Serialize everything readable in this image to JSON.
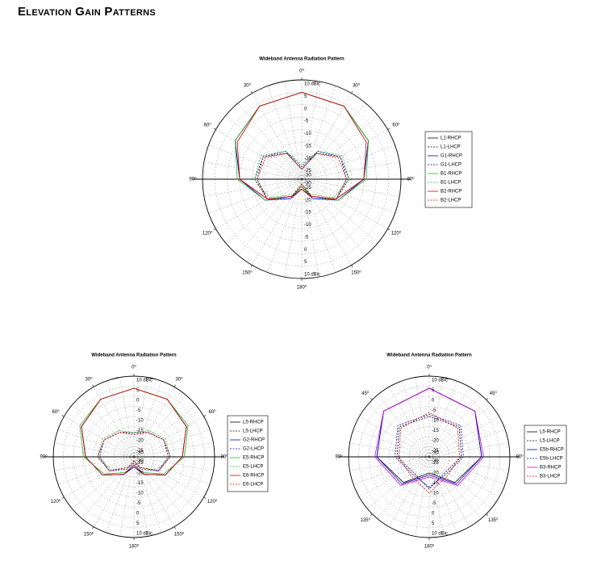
{
  "page_title": "Elevation Gain Patterns",
  "chart_data": [
    {
      "type": "polar",
      "title": "Wideband Antenna Radiation Pattern",
      "angles": [
        -180,
        -150,
        -120,
        -90,
        -60,
        -30,
        0,
        30,
        60,
        90,
        120,
        150,
        180
      ],
      "rlim": [
        -30,
        10
      ],
      "rticks": [
        -30,
        -25,
        -20,
        -15,
        -10,
        -5,
        0,
        5,
        {
          "value": 10,
          "label": "10 dBic"
        }
      ],
      "angle_ticks": [
        {
          "value": 0,
          "label": "0⁰"
        },
        {
          "value": 30,
          "label": "30⁰"
        },
        {
          "value": 60,
          "label": "60⁰"
        },
        {
          "value": 90,
          "label": "90⁰"
        },
        {
          "value": 120,
          "label": "120⁰"
        },
        {
          "value": 150,
          "label": "150⁰"
        },
        {
          "value": 180,
          "label": "180⁰"
        },
        {
          "value": -150,
          "label": "150⁰"
        },
        {
          "value": -120,
          "label": "120⁰"
        },
        {
          "value": -90,
          "label": "90⁰"
        },
        {
          "value": -60,
          "label": "60⁰"
        },
        {
          "value": -30,
          "label": "30⁰"
        }
      ],
      "series": [
        {
          "name": "L1-RHCP",
          "color": "#000000",
          "dash": false,
          "values": [
            -27,
            -22,
            -14,
            -5,
            1,
            4,
            5,
            4,
            1,
            -5,
            -14,
            -22,
            -27
          ]
        },
        {
          "name": "L1-LHCP",
          "color": "#000000",
          "dash": true,
          "values": [
            -28,
            -22,
            -14,
            -11,
            -12,
            -18,
            -26,
            -18,
            -12,
            -11,
            -14,
            -22,
            -28
          ]
        },
        {
          "name": "G1-RHCP",
          "color": "#0000cc",
          "dash": false,
          "values": [
            -26,
            -21,
            -13,
            -5,
            1,
            4,
            5,
            4,
            1,
            -5,
            -13,
            -21,
            -26
          ]
        },
        {
          "name": "G1-LHCP",
          "color": "#0000cc",
          "dash": true,
          "values": [
            -27,
            -21,
            -14,
            -12,
            -12,
            -17,
            -25,
            -17,
            -12,
            -12,
            -14,
            -21,
            -27
          ]
        },
        {
          "name": "B1-RHCP",
          "color": "#22bb22",
          "dash": false,
          "values": [
            -27,
            -22,
            -13,
            -4,
            1,
            4,
            5,
            4,
            1,
            -4,
            -13,
            -22,
            -27
          ]
        },
        {
          "name": "B1-LHCP",
          "color": "#22bb22",
          "dash": true,
          "values": [
            -28,
            -23,
            -15,
            -11,
            -11,
            -17,
            -24,
            -17,
            -11,
            -11,
            -15,
            -23,
            -28
          ]
        },
        {
          "name": "B2-RHCP",
          "color": "#dd0000",
          "dash": false,
          "values": [
            -26,
            -22,
            -14,
            -5,
            0,
            4,
            5,
            4,
            0,
            -5,
            -14,
            -22,
            -26
          ]
        },
        {
          "name": "B2-LHCP",
          "color": "#dd0000",
          "dash": true,
          "values": [
            -28,
            -22,
            -14,
            -12,
            -13,
            -18,
            -26,
            -18,
            -13,
            -12,
            -14,
            -22,
            -28
          ]
        }
      ]
    },
    {
      "type": "polar",
      "title": "Wideband Antenna Radiation Pattern",
      "angles": [
        -180,
        -150,
        -120,
        -90,
        -60,
        -30,
        0,
        30,
        60,
        90,
        120,
        150,
        180
      ],
      "rlim": [
        -30,
        10
      ],
      "rticks": [
        -30,
        -25,
        -20,
        -15,
        -10,
        -5,
        0,
        5,
        {
          "value": 10,
          "label": "10 dBic"
        }
      ],
      "angle_ticks": [
        {
          "value": 0,
          "label": "0⁰"
        },
        {
          "value": 30,
          "label": "30⁰"
        },
        {
          "value": 60,
          "label": "60⁰"
        },
        {
          "value": 90,
          "label": "90⁰"
        },
        {
          "value": 120,
          "label": "120⁰"
        },
        {
          "value": 150,
          "label": "150⁰"
        },
        {
          "value": 180,
          "label": "180⁰"
        },
        {
          "value": -150,
          "label": "150⁰"
        },
        {
          "value": -120,
          "label": "120⁰"
        },
        {
          "value": -90,
          "label": "90⁰"
        },
        {
          "value": -60,
          "label": "60⁰"
        },
        {
          "value": -30,
          "label": "30⁰"
        }
      ],
      "series": [
        {
          "name": "L5-RHCP",
          "color": "#000000",
          "dash": false,
          "values": [
            -26,
            -20,
            -12,
            -6,
            0,
            3,
            4,
            3,
            0,
            -6,
            -12,
            -20,
            -26
          ]
        },
        {
          "name": "L5-LHCP",
          "color": "#000000",
          "dash": true,
          "values": [
            -28,
            -24,
            -16,
            -12,
            -13,
            -16,
            -18,
            -16,
            -13,
            -12,
            -16,
            -24,
            -28
          ]
        },
        {
          "name": "G2-RHCP",
          "color": "#0000cc",
          "dash": false,
          "values": [
            -25,
            -20,
            -12,
            -6,
            0,
            3,
            4,
            3,
            0,
            -6,
            -12,
            -20,
            -25
          ]
        },
        {
          "name": "G2-LHCP",
          "color": "#0000cc",
          "dash": true,
          "values": [
            -27,
            -23,
            -16,
            -13,
            -13,
            -16,
            -19,
            -16,
            -13,
            -13,
            -16,
            -23,
            -27
          ]
        },
        {
          "name": "E5-RHCP",
          "color": "#22bb22",
          "dash": false,
          "values": [
            -26,
            -21,
            -13,
            -5,
            1,
            3,
            4,
            3,
            1,
            -5,
            -13,
            -21,
            -26
          ]
        },
        {
          "name": "E5-LHCP",
          "color": "#22bb22",
          "dash": true,
          "values": [
            -28,
            -24,
            -17,
            -12,
            -12,
            -15,
            -18,
            -15,
            -12,
            -12,
            -17,
            -24,
            -28
          ]
        },
        {
          "name": "E6-RHCP",
          "color": "#dd0000",
          "dash": false,
          "values": [
            -26,
            -20,
            -12,
            -6,
            0,
            3,
            4,
            3,
            0,
            -6,
            -12,
            -20,
            -26
          ]
        },
        {
          "name": "E6-LHCP",
          "color": "#dd0000",
          "dash": true,
          "values": [
            -28,
            -24,
            -16,
            -12,
            -13,
            -16,
            -19,
            -16,
            -13,
            -12,
            -16,
            -24,
            -28
          ]
        }
      ]
    },
    {
      "type": "polar",
      "title": "Wideband Antenna Radiation Pattern",
      "angles": [
        -180,
        -135,
        -90,
        -45,
        0,
        45,
        90,
        135,
        180
      ],
      "rlim": [
        -30,
        10
      ],
      "rticks": [
        -30,
        -25,
        -20,
        -15,
        -10,
        -5,
        0,
        5,
        {
          "value": 10,
          "label": "10 dBic"
        }
      ],
      "angle_ticks": [
        {
          "value": 0,
          "label": "0⁰"
        },
        {
          "value": 45,
          "label": "45⁰"
        },
        {
          "value": 90,
          "label": "90⁰"
        },
        {
          "value": 135,
          "label": "135⁰"
        },
        {
          "value": 180,
          "label": "180⁰"
        },
        {
          "value": -135,
          "label": "135⁰"
        },
        {
          "value": -90,
          "label": "90⁰"
        },
        {
          "value": -45,
          "label": "45⁰"
        }
      ],
      "series": [
        {
          "name": "L5-RHCP",
          "color": "#000000",
          "dash": false,
          "values": [
            -22,
            -12,
            -4,
            2,
            4,
            2,
            -4,
            -12,
            -22
          ]
        },
        {
          "name": "L5-LHCP",
          "color": "#000000",
          "dash": true,
          "values": [
            -14,
            -19,
            -14,
            -9,
            -10,
            -9,
            -14,
            -19,
            -14
          ]
        },
        {
          "name": "E5b-RHCP",
          "color": "#0000cc",
          "dash": false,
          "values": [
            -21,
            -11,
            -4,
            2,
            4,
            2,
            -4,
            -11,
            -21
          ]
        },
        {
          "name": "E5b-LHCP",
          "color": "#0000cc",
          "dash": true,
          "values": [
            -15,
            -18,
            -13,
            -8,
            -9,
            -8,
            -13,
            -18,
            -15
          ]
        },
        {
          "name": "B3-RHCP",
          "color": "#cc00cc",
          "dash": false,
          "values": [
            -20,
            -10,
            -3,
            2,
            4,
            2,
            -3,
            -10,
            -20
          ]
        },
        {
          "name": "B3-LHCP",
          "color": "#dd0000",
          "dash": true,
          "values": [
            -12,
            -17,
            -15,
            -10,
            -8,
            -10,
            -15,
            -17,
            -12
          ]
        }
      ]
    }
  ]
}
